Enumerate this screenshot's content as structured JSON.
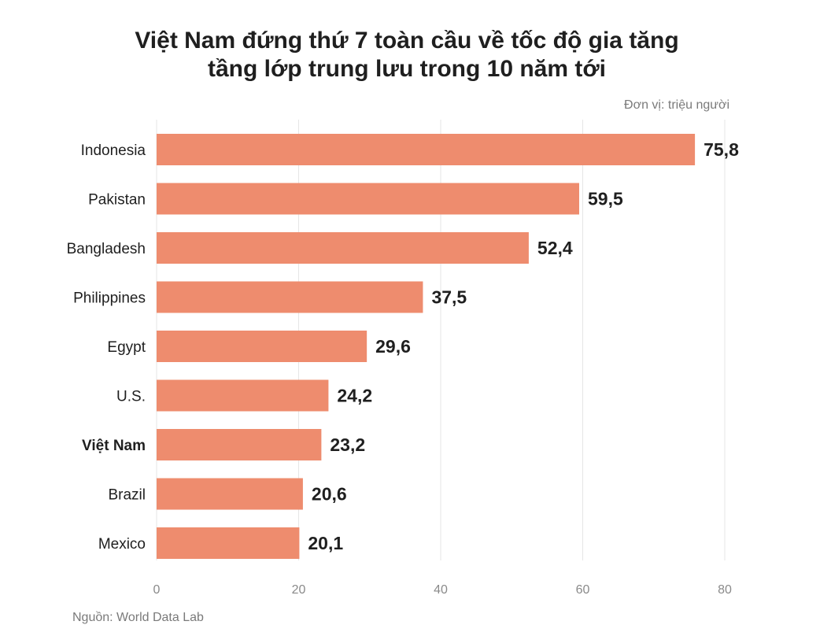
{
  "title_line1": "Việt Nam đứng thứ 7 toàn cầu về tốc độ gia tăng",
  "title_line2": "tầng lớp trung lưu trong 10 năm tới",
  "unit": "Đơn vị: triệu người",
  "source": "Nguồn: World Data Lab",
  "colors": {
    "bar": "#ee8c6e",
    "text": "#1f1f1f",
    "muted": "#7a7a7a",
    "grid": "#e6e6e6"
  },
  "chart_data": {
    "type": "bar",
    "orientation": "horizontal",
    "title": "Việt Nam đứng thứ 7 toàn cầu về tốc độ gia tăng tầng lớp trung lưu trong 10 năm tới",
    "xlabel": "",
    "ylabel": "",
    "categories": [
      "Indonesia",
      "Pakistan",
      "Bangladesh",
      "Philippines",
      "Egypt",
      "U.S.",
      "Việt Nam",
      "Brazil",
      "Mexico"
    ],
    "values": [
      75.8,
      59.5,
      52.4,
      37.5,
      29.6,
      24.2,
      23.2,
      20.6,
      20.1
    ],
    "value_labels": [
      "75,8",
      "59,5",
      "52,4",
      "37,5",
      "29,6",
      "24,2",
      "23,2",
      "20,6",
      "20,1"
    ],
    "highlight_category": "Việt Nam",
    "xlim": [
      0,
      80
    ],
    "xticks": [
      0,
      20,
      40,
      60,
      80
    ],
    "xtick_labels": [
      "0",
      "20",
      "40",
      "60",
      "80"
    ],
    "grid": true
  }
}
